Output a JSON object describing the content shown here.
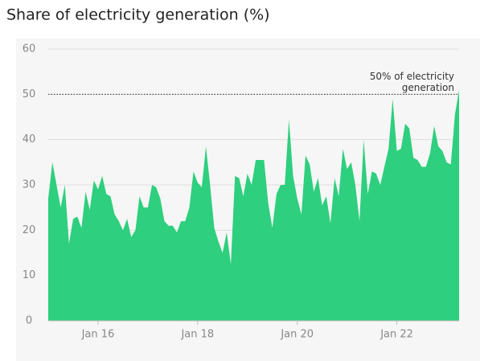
{
  "chart_data": {
    "type": "area",
    "title": "Share of electricity generation (%)",
    "color": "#2ecf7e",
    "x": [
      "2015-01",
      "2015-02",
      "2015-03",
      "2015-04",
      "2015-05",
      "2015-06",
      "2015-07",
      "2015-08",
      "2015-09",
      "2015-10",
      "2015-11",
      "2015-12",
      "2016-01",
      "2016-02",
      "2016-03",
      "2016-04",
      "2016-05",
      "2016-06",
      "2016-07",
      "2016-08",
      "2016-09",
      "2016-10",
      "2016-11",
      "2016-12",
      "2017-01",
      "2017-02",
      "2017-03",
      "2017-04",
      "2017-05",
      "2017-06",
      "2017-07",
      "2017-08",
      "2017-09",
      "2017-10",
      "2017-11",
      "2017-12",
      "2018-01",
      "2018-02",
      "2018-03",
      "2018-04",
      "2018-05",
      "2018-06",
      "2018-07",
      "2018-08",
      "2018-09",
      "2018-10",
      "2018-11",
      "2018-12",
      "2019-01",
      "2019-02",
      "2019-03",
      "2019-04",
      "2019-05",
      "2019-06",
      "2019-07",
      "2019-08",
      "2019-09",
      "2019-10",
      "2019-11",
      "2019-12",
      "2020-01",
      "2020-02",
      "2020-03",
      "2020-04",
      "2020-05",
      "2020-06",
      "2020-07",
      "2020-08",
      "2020-09",
      "2020-10",
      "2020-11",
      "2020-12",
      "2021-01",
      "2021-02",
      "2021-03",
      "2021-04",
      "2021-05",
      "2021-06",
      "2021-07",
      "2021-08",
      "2021-09",
      "2021-10",
      "2021-11",
      "2021-12",
      "2022-01",
      "2022-02",
      "2022-03",
      "2022-04",
      "2022-05",
      "2022-06",
      "2022-07",
      "2022-08",
      "2022-09",
      "2022-10",
      "2022-11",
      "2022-12",
      "2023-01",
      "2023-02",
      "2023-03",
      "2023-04"
    ],
    "values": [
      27,
      35,
      30,
      25,
      30,
      17,
      22.5,
      23,
      20.5,
      28.5,
      24.5,
      31,
      29,
      32,
      28,
      27.5,
      23.5,
      22,
      20,
      22.5,
      18.5,
      20,
      27.5,
      25,
      25,
      30,
      29.5,
      27,
      22,
      21,
      21,
      19.5,
      22,
      22,
      25,
      33,
      30.5,
      29.5,
      38.5,
      30,
      20.5,
      17.5,
      15,
      19.5,
      12.5,
      32,
      31.5,
      27.5,
      32.5,
      30,
      35.5,
      35.5,
      35.5,
      26,
      20.5,
      28,
      30,
      30,
      44.5,
      32,
      27,
      23.5,
      36.5,
      34.5,
      28.5,
      31.5,
      25.5,
      27.5,
      21.5,
      31.5,
      27.5,
      38,
      33.5,
      35,
      30,
      22,
      40,
      28,
      33,
      32.5,
      30,
      34,
      38,
      49,
      37.5,
      38,
      43.5,
      42.5,
      36,
      35.5,
      34,
      34,
      37,
      43,
      38.5,
      37.5,
      35,
      34.5,
      45.5,
      51
    ],
    "xlim": [
      "2015-01",
      "2023-04"
    ],
    "xticks": [
      {
        "value": "2016-01",
        "label": "Jan 16"
      },
      {
        "value": "2018-01",
        "label": "Jan 18"
      },
      {
        "value": "2020-01",
        "label": "Jan 20"
      },
      {
        "value": "2022-01",
        "label": "Jan 22"
      }
    ],
    "ylim": [
      0,
      60
    ],
    "yticks": [
      0,
      10,
      20,
      30,
      40,
      50,
      60
    ],
    "grid": true,
    "annotation": {
      "y": 50,
      "lines": [
        "50% of electricity",
        "generation"
      ]
    }
  }
}
